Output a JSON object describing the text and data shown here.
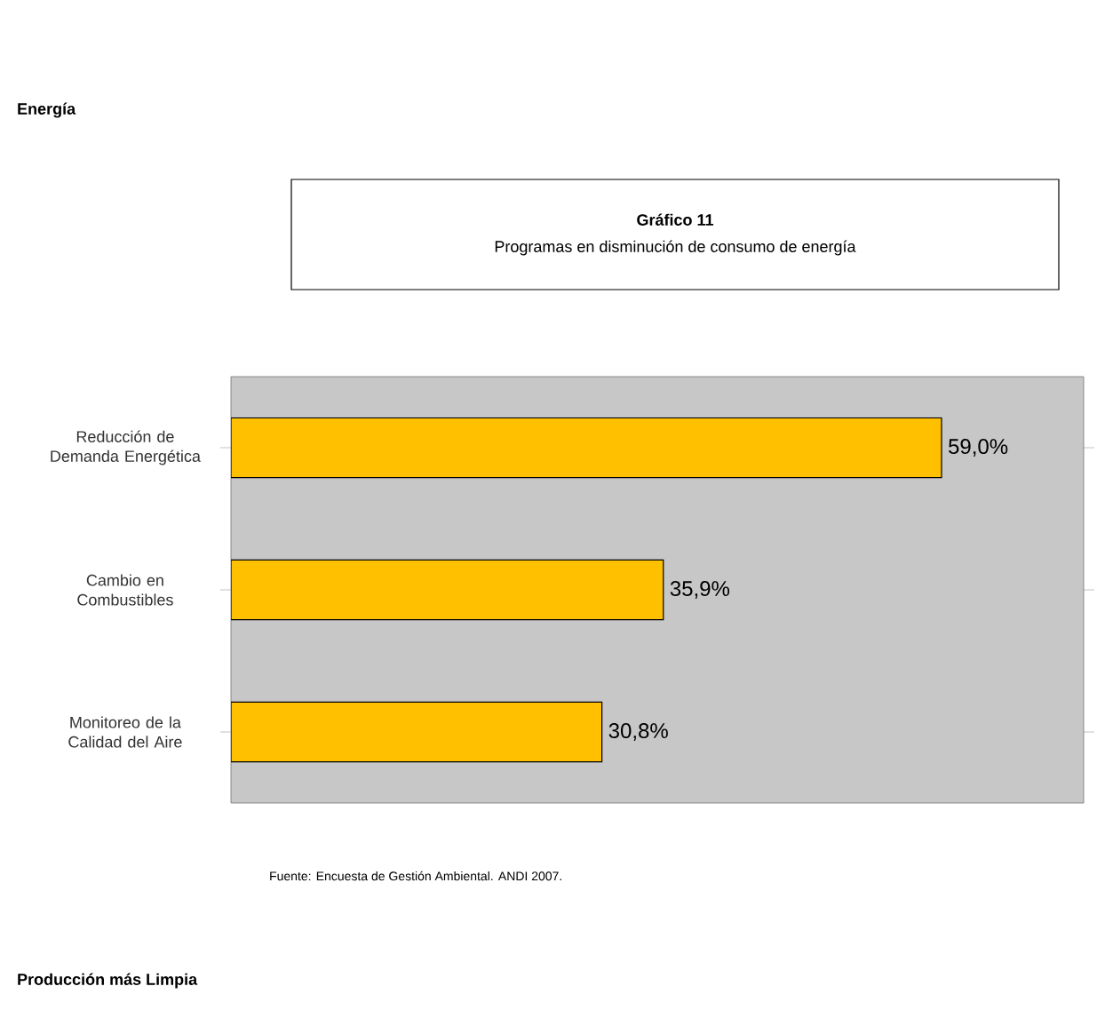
{
  "chart_data": {
    "type": "bar",
    "orientation": "horizontal",
    "title": "Gráfico 11",
    "subtitle": "Programas en disminución de consumo de energía",
    "categories": [
      "Reducción de Demanda Energética",
      "Cambio en Combustibles",
      "Monitoreo de la Calidad del Aire"
    ],
    "values": [
      59.0,
      35.9,
      30.8
    ],
    "value_labels": [
      "59,0%",
      "35,9%",
      "30,8%"
    ],
    "color": "#ffc000",
    "annotations": [
      "Energía",
      "Fuente: Encuesta de Gestión Ambiental. ANDI 2007.",
      "Producción más Limpia"
    ]
  }
}
